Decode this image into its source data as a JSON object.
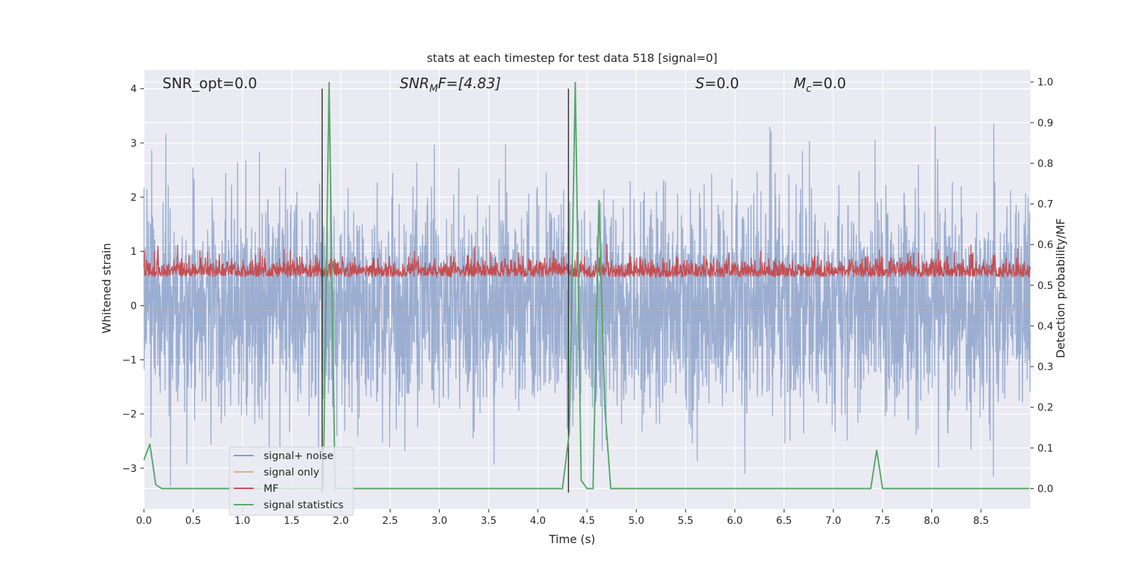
{
  "chart_data": {
    "type": "line",
    "title": "stats at each timestep for test data 518 [signal=0]",
    "xlabel": "Time (s)",
    "ylabel_left": "Whitened strain",
    "ylabel_right": "Detection probability/MF",
    "xlim": [
      0.0,
      9.0
    ],
    "ylim_left": [
      -3.75,
      4.35
    ],
    "ylim_right": [
      -0.05,
      1.03
    ],
    "x_ticks": [
      0.0,
      0.5,
      1.0,
      1.5,
      2.0,
      2.5,
      3.0,
      3.5,
      4.0,
      4.5,
      5.0,
      5.5,
      6.0,
      6.5,
      7.0,
      7.5,
      8.0,
      8.5
    ],
    "x_tick_labels": [
      "0.0",
      "0.5",
      "1.0",
      "1.5",
      "2.0",
      "2.5",
      "3.0",
      "3.5",
      "4.0",
      "4.5",
      "5.0",
      "5.5",
      "6.0",
      "6.5",
      "7.0",
      "7.5",
      "8.0",
      "8.5"
    ],
    "y_left_ticks": [
      -3,
      -2,
      -1,
      0,
      1,
      2,
      3,
      4
    ],
    "y_left_tick_labels": [
      "−3",
      "−2",
      "−1",
      "0",
      "1",
      "2",
      "3",
      "4"
    ],
    "y_right_ticks": [
      0.0,
      0.1,
      0.2,
      0.3,
      0.4,
      0.5,
      0.6,
      0.7,
      0.8,
      0.9,
      1.0
    ],
    "y_right_tick_labels": [
      "0.0",
      "0.1",
      "0.2",
      "0.3",
      "0.4",
      "0.5",
      "0.6",
      "0.7",
      "0.8",
      "0.9",
      "1.0"
    ],
    "grid": true,
    "background": "#eaeaf2",
    "annotations": {
      "snr_opt": "SNR_opt=0.0",
      "snr_mf_main": "SNR",
      "snr_mf_sub": "M",
      "snr_mf_rest": "F=[4.83]",
      "s_italic": "S",
      "s_rest": "=0.0",
      "mc_main": "M",
      "mc_sub": "c",
      "mc_rest": "=0.0"
    },
    "series": [
      {
        "name": "signal+ noise",
        "color": "#4c72b0",
        "alpha": 0.5,
        "axis": "left",
        "description": "whitened strain noise, approx. zero mean, unit variance, range about -3.4 to 4.0",
        "approx_range": [
          -3.4,
          4.0
        ]
      },
      {
        "name": "signal only",
        "color": "#dd8452",
        "alpha": 0.5,
        "axis": "left",
        "values": "all zero"
      },
      {
        "name": "MF",
        "color": "#c44e52",
        "axis": "right",
        "approx_range": [
          0.49,
          0.6
        ],
        "peaks": [
          {
            "x": 4.7,
            "y": 0.6
          }
        ]
      },
      {
        "name": "signal statistics",
        "color": "#55a868",
        "axis": "right",
        "x": [
          0.0,
          0.06,
          0.12,
          0.18,
          1.82,
          1.88,
          1.94,
          2.0,
          4.25,
          4.32,
          4.38,
          4.44,
          4.5,
          4.56,
          4.62,
          4.68,
          4.74,
          7.38,
          7.44,
          7.5,
          8.99
        ],
        "values": [
          0.07,
          0.11,
          0.01,
          0.0,
          0.0,
          1.0,
          0.0,
          0.0,
          0.0,
          0.14,
          1.0,
          0.02,
          0.0,
          0.0,
          0.71,
          0.2,
          0.0,
          0.0,
          0.095,
          0.0,
          0.0
        ]
      }
    ],
    "vertical_lines": [
      {
        "x": 1.81,
        "color": "#333333"
      },
      {
        "x": 4.31,
        "color": "#333333"
      }
    ],
    "legend": {
      "placement": "lower left",
      "entries": [
        "signal+ noise",
        "signal only",
        "MF",
        "signal statistics"
      ]
    }
  }
}
